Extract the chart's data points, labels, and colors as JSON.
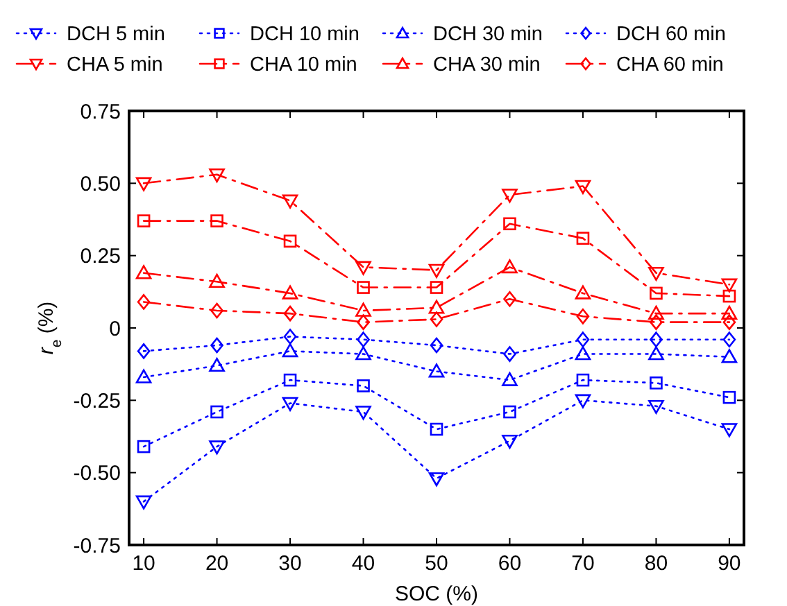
{
  "chart_data": {
    "type": "line",
    "xlabel": "SOC (%)",
    "ylabel": "r$_{e}$ (%)",
    "x": [
      10,
      20,
      30,
      40,
      50,
      60,
      70,
      80,
      90
    ],
    "xlim": [
      8,
      92
    ],
    "xticks": [
      10,
      20,
      30,
      40,
      50,
      60,
      70,
      80,
      90
    ],
    "ylim": [
      -0.75,
      0.75
    ],
    "yticks": [
      {
        "value": -0.75,
        "label": "-0.75"
      },
      {
        "value": -0.5,
        "label": "-0.50"
      },
      {
        "value": -0.25,
        "label": "-0.25"
      },
      0,
      {
        "value": 0.25,
        "label": "0.25"
      },
      {
        "value": 0.5,
        "label": "0.50"
      },
      {
        "value": 0.75,
        "label": "0.75"
      }
    ],
    "grid": false,
    "legend": "top",
    "series": [
      {
        "name": "DCH 5 min",
        "color": "#0000ff",
        "marker": "triangle-down",
        "line_style": "dotted",
        "values": [
          -0.6,
          -0.41,
          -0.26,
          -0.29,
          -0.52,
          -0.39,
          -0.25,
          -0.27,
          -0.35
        ]
      },
      {
        "name": "CHA 5 min",
        "color": "#ff0000",
        "marker": "triangle-down",
        "line_style": "dashdot",
        "values": [
          0.5,
          0.53,
          0.44,
          0.21,
          0.2,
          0.46,
          0.49,
          0.19,
          0.15
        ]
      },
      {
        "name": "DCH 10 min",
        "color": "#0000ff",
        "marker": "square",
        "line_style": "dotted",
        "values": [
          -0.41,
          -0.29,
          -0.18,
          -0.2,
          -0.35,
          -0.29,
          -0.18,
          -0.19,
          -0.24
        ]
      },
      {
        "name": "CHA 10 min",
        "color": "#ff0000",
        "marker": "square",
        "line_style": "dashdot",
        "values": [
          0.37,
          0.37,
          0.3,
          0.14,
          0.14,
          0.36,
          0.31,
          0.12,
          0.11
        ]
      },
      {
        "name": "DCH 30 min",
        "color": "#0000ff",
        "marker": "triangle",
        "line_style": "dotted",
        "values": [
          -0.17,
          -0.13,
          -0.08,
          -0.09,
          -0.15,
          -0.18,
          -0.09,
          -0.09,
          -0.1
        ]
      },
      {
        "name": "CHA 30 min",
        "color": "#ff0000",
        "marker": "triangle",
        "line_style": "dashdot",
        "values": [
          0.19,
          0.16,
          0.12,
          0.06,
          0.07,
          0.21,
          0.12,
          0.05,
          0.05
        ]
      },
      {
        "name": "DCH 60 min",
        "color": "#0000ff",
        "marker": "diamond",
        "line_style": "dotted",
        "values": [
          -0.08,
          -0.06,
          -0.03,
          -0.04,
          -0.06,
          -0.09,
          -0.04,
          -0.04,
          -0.04
        ]
      },
      {
        "name": "CHA 60 min",
        "color": "#ff0000",
        "marker": "diamond",
        "line_style": "dashdot",
        "values": [
          0.09,
          0.06,
          0.05,
          0.02,
          0.03,
          0.1,
          0.04,
          0.02,
          0.02
        ]
      }
    ]
  }
}
